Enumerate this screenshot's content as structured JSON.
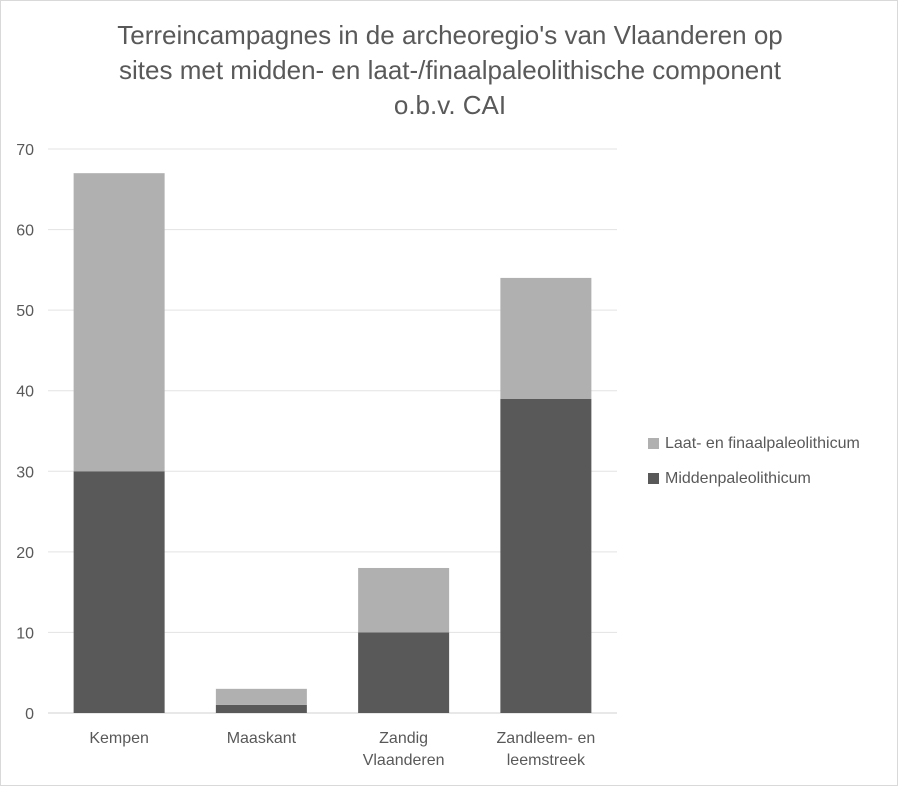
{
  "chart_data": {
    "type": "bar",
    "stacked": true,
    "title": [
      "Terreincampagnes in de archeoregio's van Vlaanderen op",
      "sites met midden- en laat-/finaalpaleolithische component",
      "o.b.v. CAI"
    ],
    "categories": [
      [
        "Kempen"
      ],
      [
        "Maaskant"
      ],
      [
        "Zandig",
        "Vlaanderen"
      ],
      [
        "Zandleem- en",
        "leemstreek"
      ]
    ],
    "series": [
      {
        "name": "Middenpaleolithicum",
        "values": [
          30,
          1,
          10,
          39
        ],
        "color": "#595959"
      },
      {
        "name": "Laat- en finaalpaleolithicum",
        "values": [
          37,
          2,
          8,
          15
        ],
        "color": "#b0b0b0"
      }
    ],
    "ylim": [
      0,
      70
    ],
    "yticks": [
      0,
      10,
      20,
      30,
      40,
      50,
      60,
      70
    ],
    "grid": true,
    "legend_position": "right"
  }
}
